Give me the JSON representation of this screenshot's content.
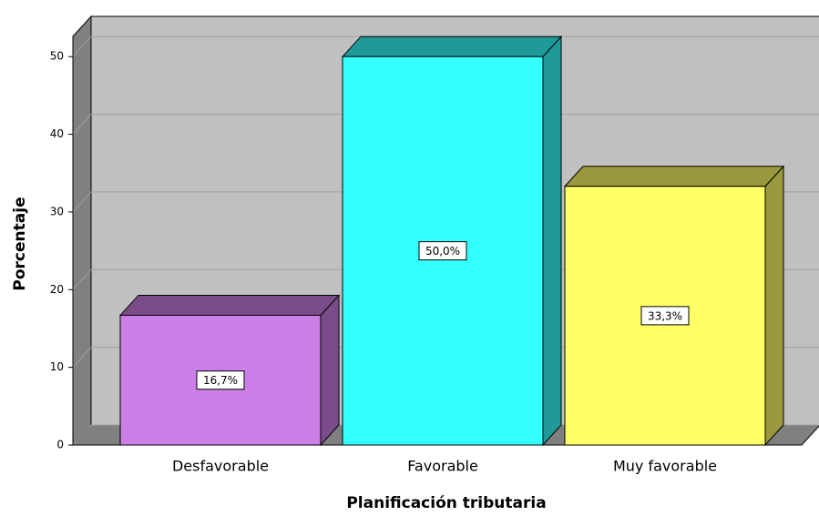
{
  "chart_data": {
    "type": "bar3d",
    "x_label": "Planificación tributaria",
    "y_label": "Porcentaje",
    "categories": [
      "Desfavorable",
      "Favorable",
      "Muy favorable"
    ],
    "values": [
      16.7,
      50.0,
      33.3
    ],
    "value_labels": [
      "16,7%",
      "50,0%",
      "33,3%"
    ],
    "colors": [
      "#cc7fe6",
      "#33ffff",
      "#ffff66"
    ],
    "ylim": [
      0,
      52.6
    ],
    "yticks": [
      0,
      10,
      20,
      30,
      40,
      50
    ],
    "grid": true
  }
}
